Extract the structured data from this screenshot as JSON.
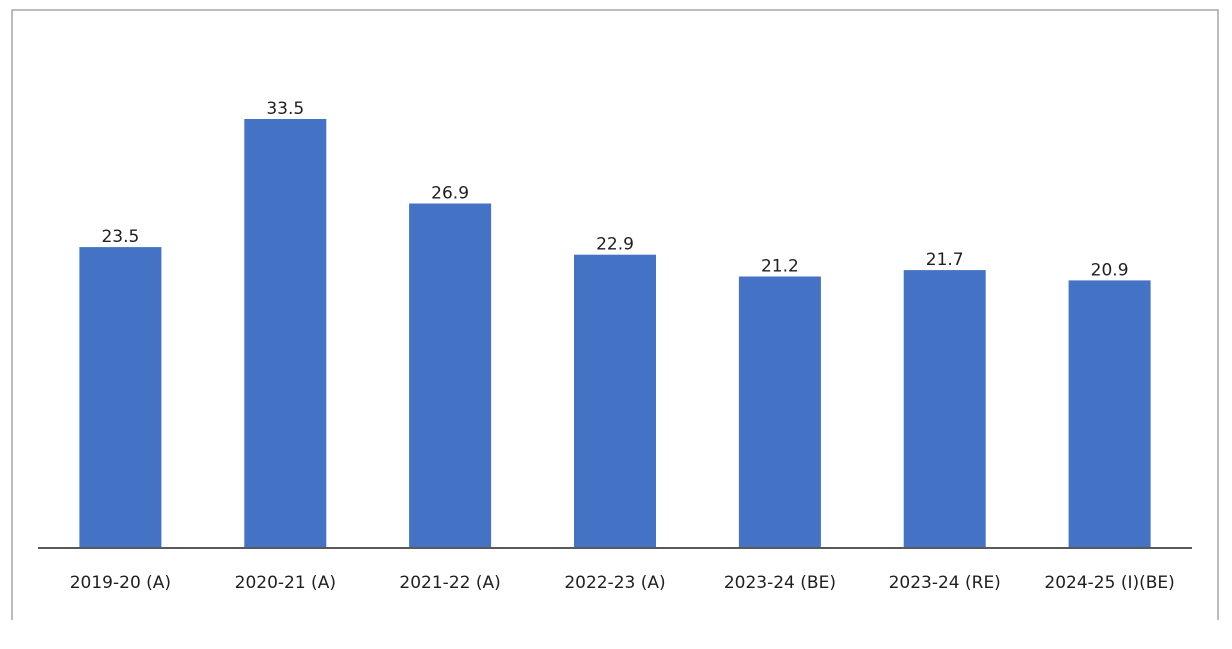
{
  "chart_data": {
    "type": "bar",
    "categories": [
      "2019-20 (A)",
      "2020-21 (A)",
      "2021-22 (A)",
      "2022-23 (A)",
      "2023-24 (BE)",
      "2023-24 (RE)",
      "2024-25 (I)(BE)"
    ],
    "values": [
      23.5,
      33.5,
      26.9,
      22.9,
      21.2,
      21.7,
      20.9
    ],
    "data_labels": [
      "23.5",
      "33.5",
      "26.9",
      "22.9",
      "21.2",
      "21.7",
      "20.9"
    ],
    "title": "",
    "xlabel": "",
    "ylabel": "",
    "ylim": [
      0,
      36
    ],
    "grid": false,
    "legend": "none",
    "colors": {
      "bar": "#4472c4",
      "axis": "#595959",
      "frame": "#a6a6a6",
      "text": "#1f1f1f"
    }
  }
}
